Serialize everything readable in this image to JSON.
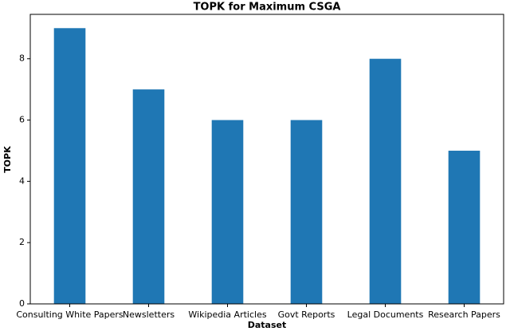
{
  "chart_data": {
    "type": "bar",
    "title": "TOPK for Maximum CSGA",
    "xlabel": "Dataset",
    "ylabel": "TOPK",
    "categories": [
      "Consulting White Papers",
      "Newsletters",
      "Wikipedia Articles",
      "Govt Reports",
      "Legal Documents",
      "Research Papers"
    ],
    "values": [
      9,
      7,
      6,
      6,
      8,
      5
    ],
    "color": "#1f77b4",
    "ylim": [
      0,
      9.45
    ],
    "yticks": [
      0,
      2,
      4,
      6,
      8
    ],
    "grid": false
  }
}
